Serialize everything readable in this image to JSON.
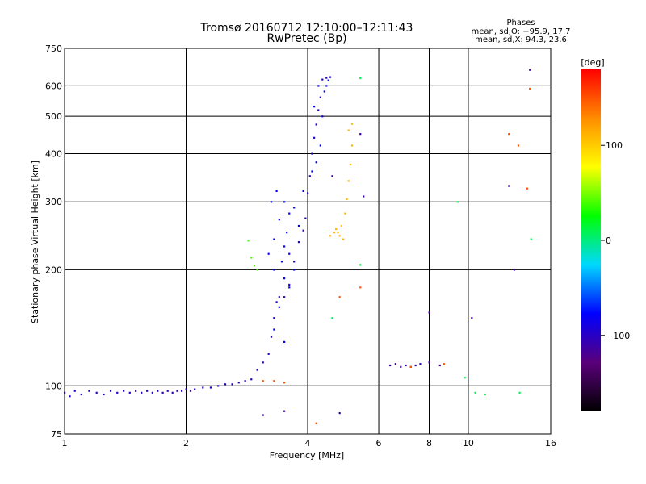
{
  "chart_data": {
    "type": "scatter",
    "title": "Tromsø 20160712 12:10:00–12:11:43",
    "subtitle": "RwPretec (Bp)",
    "xlabel": "Frequency [MHz]",
    "ylabel": "Stationary phase Virtual Height [km]",
    "x_scale": "log",
    "y_scale": "log",
    "xlim": [
      1,
      16
    ],
    "ylim": [
      75,
      750
    ],
    "x_ticks": [
      1,
      2,
      4,
      6,
      8,
      10,
      16
    ],
    "y_ticks": [
      75,
      100,
      200,
      300,
      400,
      500,
      600,
      750
    ],
    "grid": true,
    "stats": {
      "heading": "Phases",
      "line_o": "mean, sd,O: −95.9, 17.7",
      "line_x": "mean, sd,X:  94.3, 23.6"
    },
    "colorbar": {
      "label": "[deg]",
      "range": [
        -180,
        180
      ],
      "ticks": [
        100,
        0,
        -100
      ],
      "tick_labels": [
        "100",
        "0",
        "−100"
      ],
      "colors": [
        "#000000",
        "#5a007a",
        "#0000ff",
        "#00d8ff",
        "#00ff00",
        "#ffff00",
        "#ff8c00",
        "#ff0000"
      ]
    },
    "series": [
      {
        "phase": -100,
        "points": [
          [
            1.0,
            96
          ],
          [
            1.03,
            94
          ],
          [
            1.06,
            97
          ],
          [
            1.1,
            95
          ],
          [
            1.15,
            97
          ],
          [
            1.2,
            96
          ],
          [
            1.25,
            95
          ],
          [
            1.3,
            97
          ],
          [
            1.35,
            96
          ],
          [
            1.4,
            97
          ],
          [
            1.45,
            96
          ],
          [
            1.5,
            97
          ],
          [
            1.55,
            96
          ],
          [
            1.6,
            97
          ],
          [
            1.65,
            96
          ],
          [
            1.7,
            97
          ],
          [
            1.75,
            96
          ],
          [
            1.8,
            97
          ],
          [
            1.85,
            96
          ],
          [
            1.9,
            97
          ],
          [
            1.95,
            97
          ],
          [
            2.0,
            98
          ],
          [
            2.05,
            97
          ],
          [
            2.1,
            98
          ],
          [
            2.2,
            99
          ],
          [
            2.3,
            99
          ],
          [
            2.4,
            100
          ],
          [
            2.5,
            101
          ],
          [
            2.6,
            101
          ],
          [
            2.7,
            102
          ],
          [
            2.8,
            103
          ],
          [
            2.9,
            104
          ],
          [
            3.0,
            110
          ],
          [
            3.1,
            115
          ],
          [
            3.2,
            121
          ],
          [
            3.25,
            134
          ],
          [
            3.3,
            150
          ],
          [
            3.35,
            165
          ],
          [
            3.4,
            170
          ],
          [
            3.5,
            170
          ],
          [
            3.6,
            183
          ],
          [
            3.7,
            210
          ],
          [
            3.8,
            236
          ],
          [
            3.9,
            253
          ],
          [
            3.95,
            272
          ],
          [
            4.0,
            316
          ],
          [
            4.05,
            350
          ],
          [
            4.1,
            400
          ],
          [
            4.15,
            440
          ],
          [
            4.2,
            476
          ],
          [
            4.25,
            519
          ],
          [
            4.3,
            560
          ],
          [
            4.35,
            623
          ],
          [
            4.45,
            629
          ],
          [
            4.55,
            632
          ]
        ]
      },
      {
        "phase": -80,
        "points": [
          [
            3.5,
            230
          ],
          [
            3.45,
            210
          ],
          [
            3.55,
            250
          ],
          [
            3.6,
            280
          ],
          [
            3.4,
            270
          ],
          [
            3.3,
            240
          ],
          [
            3.2,
            220
          ],
          [
            3.5,
            190
          ],
          [
            3.6,
            180
          ],
          [
            3.4,
            160
          ],
          [
            3.3,
            140
          ],
          [
            3.5,
            130
          ],
          [
            3.7,
            200
          ],
          [
            3.8,
            260
          ],
          [
            3.6,
            220
          ],
          [
            3.3,
            200
          ],
          [
            3.25,
            300
          ],
          [
            3.35,
            320
          ],
          [
            3.5,
            300
          ],
          [
            3.7,
            290
          ],
          [
            3.9,
            320
          ],
          [
            4.1,
            360
          ],
          [
            4.2,
            380
          ],
          [
            4.3,
            420
          ],
          [
            4.35,
            500
          ],
          [
            4.45,
            600
          ],
          [
            4.5,
            620
          ],
          [
            4.4,
            580
          ],
          [
            4.25,
            600
          ],
          [
            4.15,
            530
          ]
        ]
      },
      {
        "phase": 110,
        "points": [
          [
            4.55,
            245
          ],
          [
            4.65,
            250
          ],
          [
            4.75,
            250
          ],
          [
            4.85,
            260
          ],
          [
            4.95,
            280
          ],
          [
            5.0,
            305
          ],
          [
            5.05,
            340
          ],
          [
            5.1,
            375
          ],
          [
            5.15,
            420
          ],
          [
            5.15,
            478
          ],
          [
            5.05,
            460
          ],
          [
            4.9,
            240
          ],
          [
            4.8,
            245
          ],
          [
            4.7,
            255
          ]
        ]
      },
      {
        "phase": 40,
        "points": [
          [
            2.85,
            238
          ],
          [
            2.9,
            215
          ],
          [
            3.0,
            200
          ],
          [
            2.95,
            205
          ]
        ]
      },
      {
        "phase": -110,
        "points": [
          [
            6.4,
            113
          ],
          [
            6.6,
            114
          ],
          [
            6.8,
            112
          ],
          [
            7.0,
            113
          ],
          [
            7.2,
            112
          ],
          [
            7.4,
            113
          ],
          [
            7.6,
            114
          ],
          [
            8.0,
            115
          ],
          [
            8.5,
            113
          ]
        ]
      },
      {
        "phase": 150,
        "points": [
          [
            7.2,
            112
          ],
          [
            8.7,
            114
          ],
          [
            12.6,
            450
          ],
          [
            13.3,
            420
          ],
          [
            14.2,
            590
          ],
          [
            14.0,
            325
          ],
          [
            3.1,
            103
          ],
          [
            3.3,
            103
          ],
          [
            3.5,
            102
          ],
          [
            4.2,
            80
          ],
          [
            5.4,
            180
          ],
          [
            4.8,
            170
          ]
        ]
      },
      {
        "phase": -110,
        "points": [
          [
            14.2,
            660
          ],
          [
            12.6,
            330
          ],
          [
            13.0,
            200
          ],
          [
            3.1,
            84
          ],
          [
            3.5,
            86
          ],
          [
            4.8,
            85
          ],
          [
            5.4,
            450
          ],
          [
            4.6,
            350
          ],
          [
            5.5,
            310
          ],
          [
            8.0,
            155
          ],
          [
            10.2,
            150
          ]
        ]
      },
      {
        "phase": 10,
        "points": [
          [
            5.4,
            628
          ],
          [
            5.4,
            206
          ],
          [
            14.3,
            240
          ],
          [
            4.6,
            150
          ],
          [
            11.0,
            95
          ],
          [
            9.4,
            300
          ],
          [
            9.8,
            105
          ],
          [
            10.4,
            96
          ],
          [
            13.4,
            96
          ]
        ]
      }
    ]
  }
}
